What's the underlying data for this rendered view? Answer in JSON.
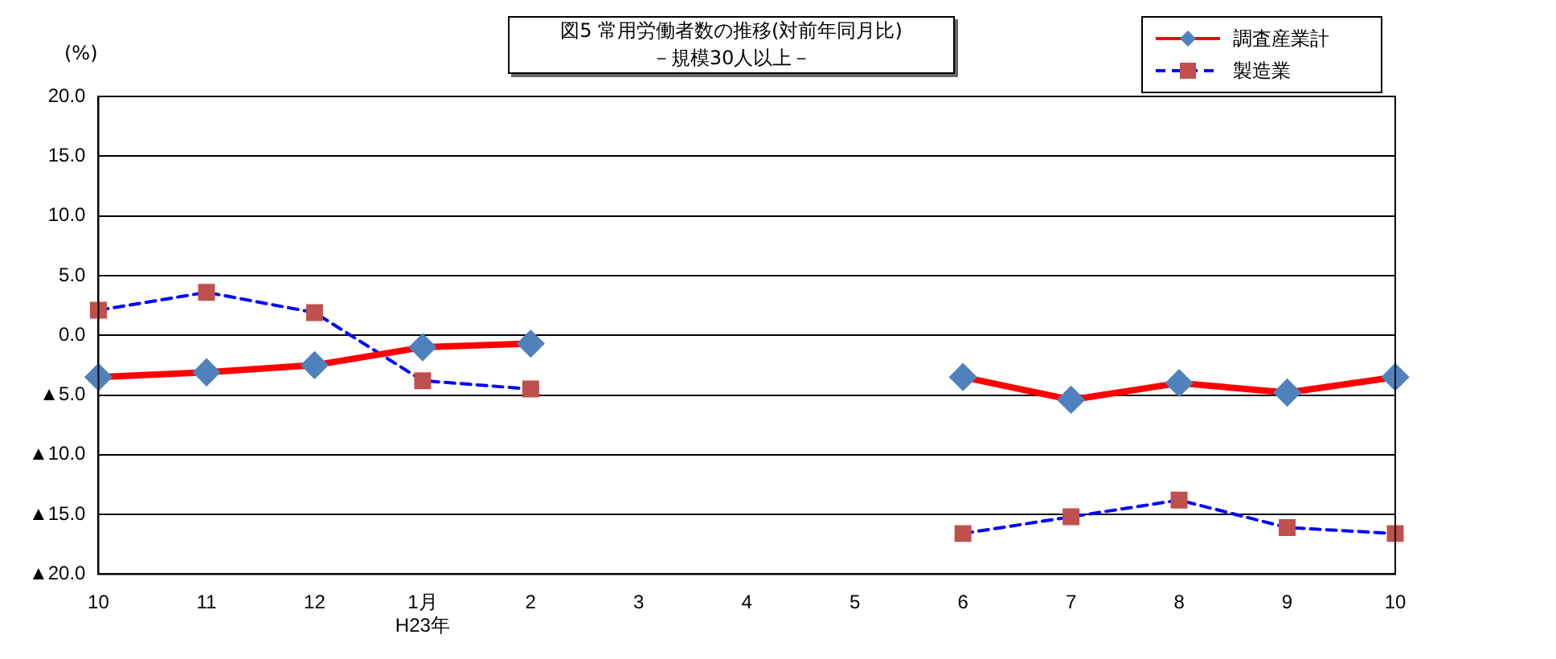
{
  "chart_data": {
    "type": "line",
    "title": "図5 常用労働者数の推移(対前年同月比)",
    "subtitle": "－規模30人以上－",
    "ylabel": "(%)",
    "categories": [
      "10",
      "11",
      "12",
      "1月\nH23年",
      "2",
      "3",
      "4",
      "5",
      "6",
      "7",
      "8",
      "9",
      "10"
    ],
    "ylim": [
      -20,
      20
    ],
    "yticks": [
      {
        "value": -20,
        "label": "▲20.0"
      },
      {
        "value": -15,
        "label": "▲15.0"
      },
      {
        "value": -10,
        "label": "▲10.0"
      },
      {
        "value": -5,
        "label": "▲5.0"
      },
      {
        "value": 0,
        "label": "0.0"
      },
      {
        "value": 5,
        "label": "5.0"
      },
      {
        "value": 10,
        "label": "10.0"
      },
      {
        "value": 15,
        "label": "15.0"
      },
      {
        "value": 20,
        "label": "20.0"
      }
    ],
    "grid": "y",
    "legend": "top right",
    "series": [
      {
        "name": "調査産業計",
        "color": "#ff0000",
        "line_style": "solid",
        "marker": "diamond",
        "colors": [
          "#4f81bd",
          "#4f81bd",
          "#4f81bd",
          "#4f81bd",
          "#4f81bd",
          "#4f81bd",
          "#4f81bd",
          "#4f81bd",
          "#4f81bd",
          "#4f81bd",
          "#4f81bd",
          "#4f81bd",
          "#4f81bd"
        ],
        "values": [
          -3.5,
          -3.1,
          -2.5,
          -1.0,
          -0.7,
          null,
          null,
          null,
          -3.5,
          -5.4,
          -4.0,
          -4.8,
          -3.5
        ]
      },
      {
        "name": "製造業",
        "color": "#0000ff",
        "line_style": "dashed",
        "marker": "square",
        "colors": [
          "#c0504d",
          "#c0504d",
          "#c0504d",
          "#c0504d",
          "#c0504d",
          "#c0504d",
          "#c0504d",
          "#c0504d",
          "#c0504d",
          "#c0504d",
          "#c0504d",
          "#c0504d",
          "#c0504d"
        ],
        "values": [
          2.1,
          3.6,
          1.9,
          -3.8,
          -4.5,
          null,
          null,
          null,
          -16.6,
          -15.2,
          -13.8,
          -16.1,
          -16.6
        ]
      }
    ]
  }
}
